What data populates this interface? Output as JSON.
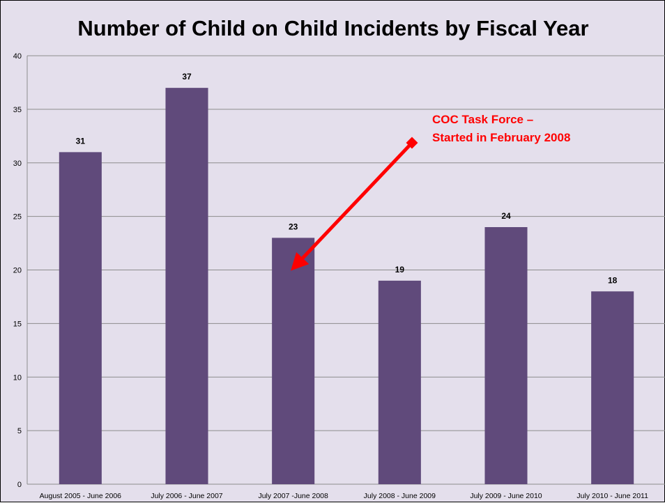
{
  "chart_data": {
    "type": "bar",
    "title": "Number of Child on Child Incidents by Fiscal Year",
    "xlabel": "",
    "ylabel": "",
    "categories": [
      "August 2005 - June 2006",
      "July 2006 - June 2007",
      "July 2007 -June 2008",
      "July 2008  - June 2009",
      "July 2009 - June 2010",
      "July 2010 - June 2011"
    ],
    "values": [
      31,
      37,
      23,
      19,
      24,
      18
    ],
    "data_labels": [
      "31",
      "37",
      "23",
      "19",
      "24",
      "18"
    ],
    "ylim": [
      0,
      40
    ],
    "yticks": [
      0,
      5,
      10,
      15,
      20,
      25,
      30,
      35,
      40
    ],
    "ytick_labels": [
      "0",
      "5",
      "10",
      "15",
      "20",
      "25",
      "30",
      "35",
      "40"
    ],
    "grid": true,
    "legend": "none",
    "annotation": {
      "lines": [
        "COC Task Force –",
        "Started in February 2008"
      ],
      "points_to_category": "July 2007 -June 2008",
      "points_to_value": 20,
      "color": "#ff0000"
    }
  },
  "colors": {
    "bar": "#604a7b",
    "background": "#e4dfec",
    "gridline": "#8c8c8c",
    "annotation": "#ff0000"
  }
}
